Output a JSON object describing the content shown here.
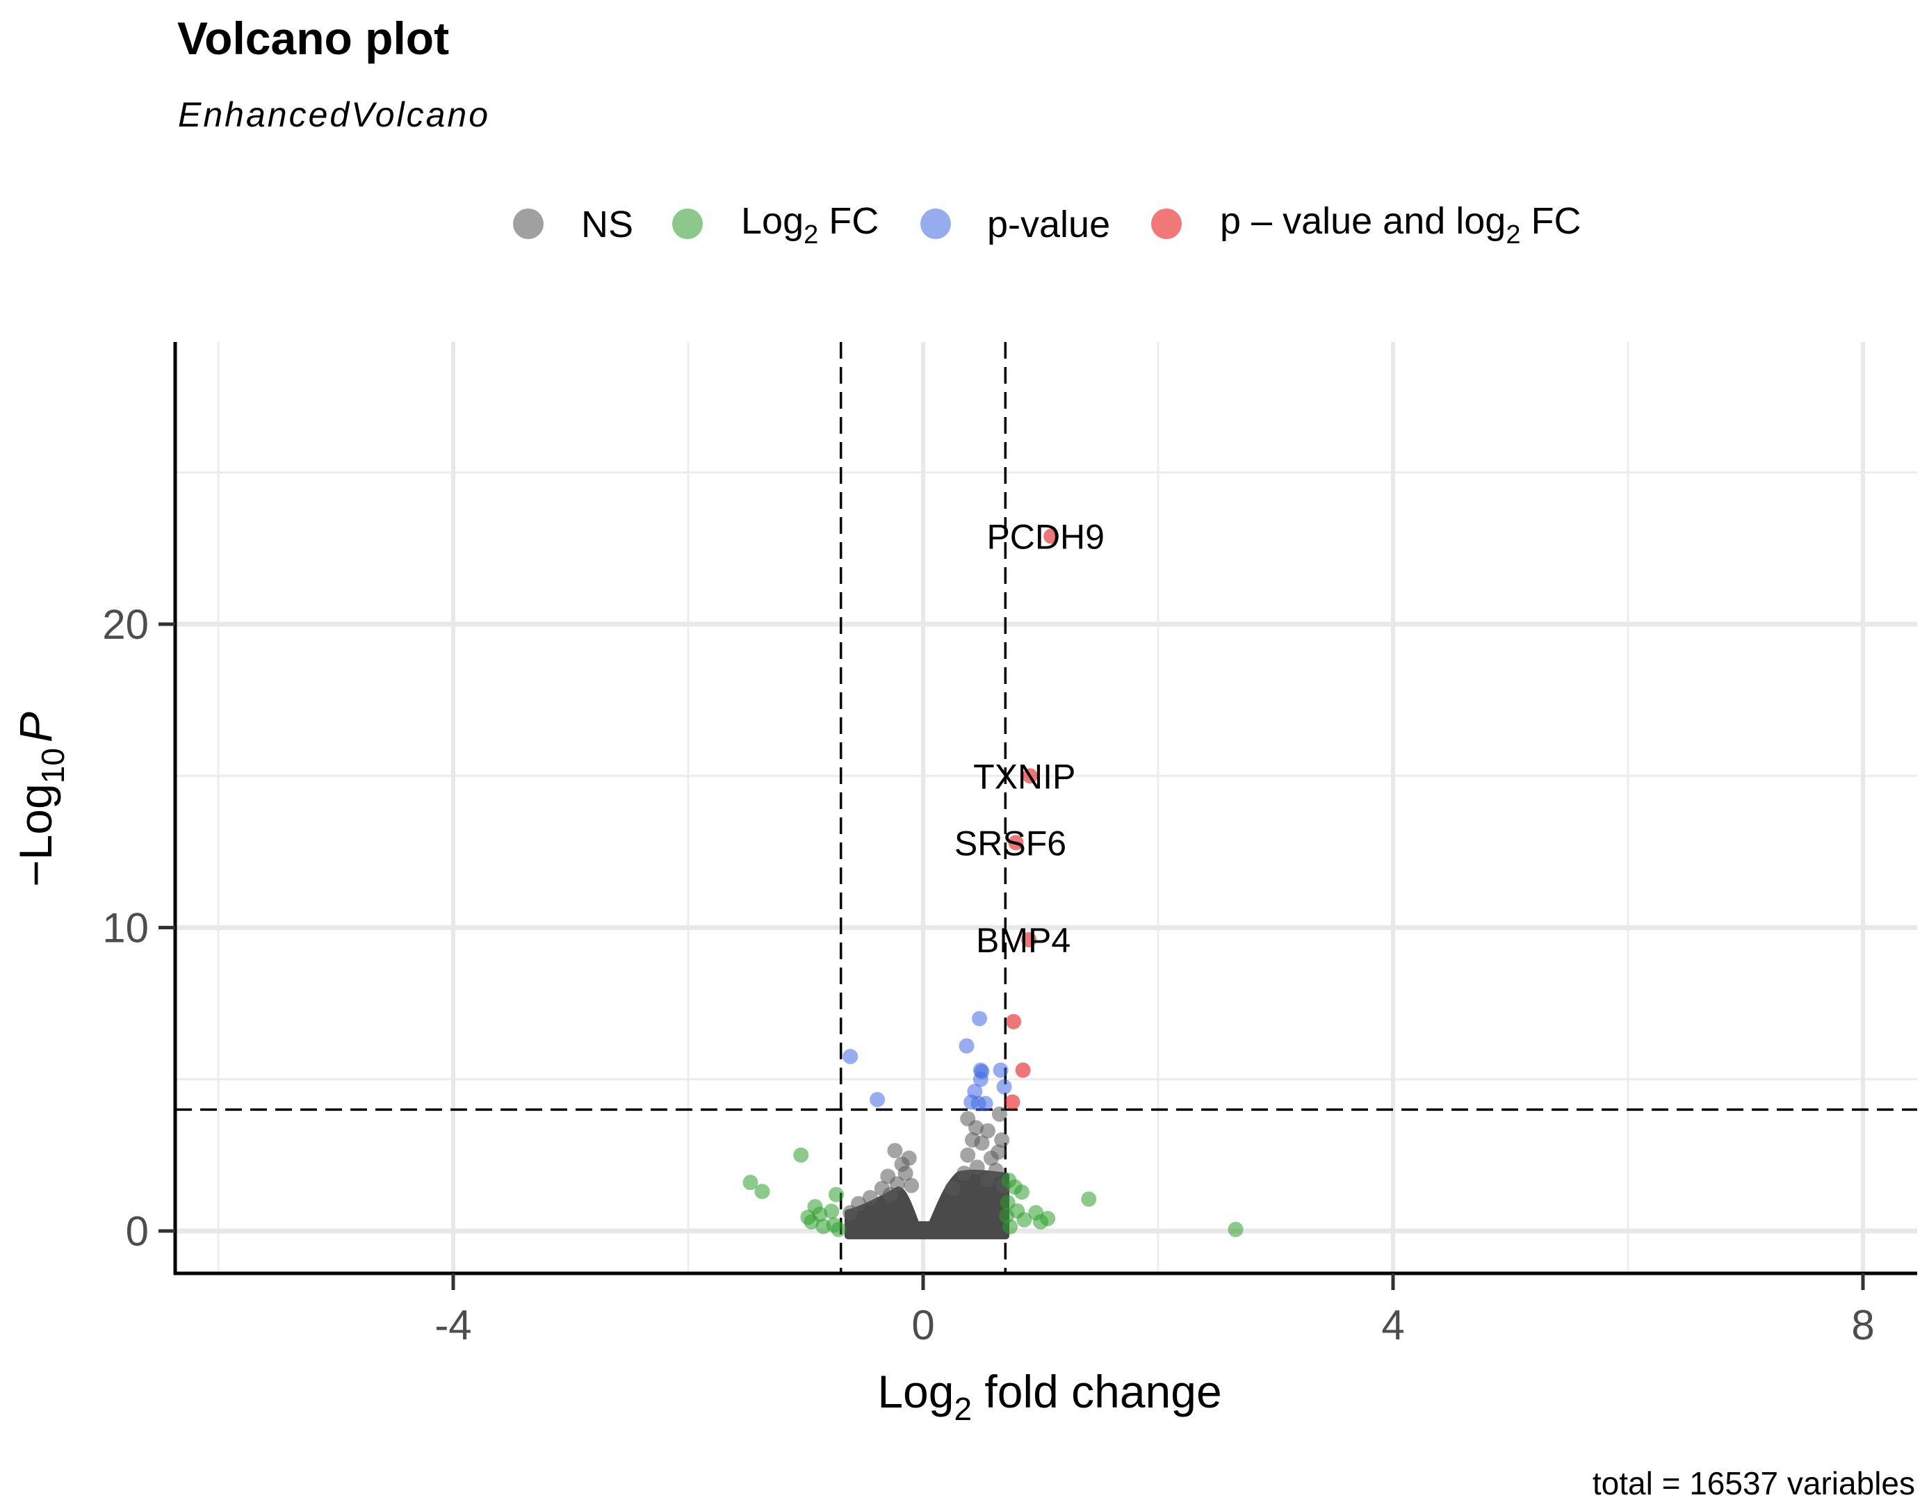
{
  "chart_data": {
    "type": "scatter",
    "title": "Volcano plot",
    "subtitle": "EnhancedVolcano",
    "xlabel": "Log2 fold change",
    "xlabel_main": "Log",
    "xlabel_sub": "2",
    "xlabel_rest": " fold change",
    "ylabel": "-Log10 P",
    "ylabel_prefix": "−Log",
    "ylabel_sub": "10",
    "ylabel_italic": "P",
    "caption": "total = 16537 variables",
    "xlim": [
      -6.36,
      8.3
    ],
    "ylim": [
      -1.4,
      29.4
    ],
    "x_ticks": [
      -4,
      0,
      4,
      8
    ],
    "x_tick_labels": [
      "-4",
      "0",
      "4",
      "8"
    ],
    "y_ticks": [
      0,
      10,
      20
    ],
    "y_tick_labels": [
      "0",
      "10",
      "20"
    ],
    "x_minor_grid": [
      -6,
      -2,
      2,
      6
    ],
    "y_minor_grid": [
      5,
      15,
      25
    ],
    "grid": true,
    "cutoffs": {
      "log2fc": [
        -0.7,
        0.7
      ],
      "neg_log10_p": 4.0
    },
    "legend": {
      "position": "top",
      "entries": [
        {
          "key": "NS",
          "label": "NS",
          "color": "#a0a0a0"
        },
        {
          "key": "FC",
          "label": "Log2 FC",
          "main": "Log",
          "sub": "2",
          "rest": " FC",
          "color": "#8cc78c"
        },
        {
          "key": "P",
          "label": "p-value",
          "color": "#97acef"
        },
        {
          "key": "FC_P",
          "label": "p – value and log2 FC",
          "main": "p – value and log",
          "sub": "2",
          "rest": " FC",
          "color": "#f07878"
        }
      ]
    },
    "colors": {
      "NS": "#5a5a5a",
      "FC": "#2e9e2e",
      "P": "#4169e1",
      "FC_P": "#e31a1c"
    },
    "labeled_points": [
      {
        "gene": "PCDH9",
        "x": 1.09,
        "y": 22.9
      },
      {
        "gene": "TXNIP",
        "x": 0.91,
        "y": 15.0
      },
      {
        "gene": "SRSF6",
        "x": 0.79,
        "y": 12.8
      },
      {
        "gene": "BMP4",
        "x": 0.9,
        "y": 9.6
      }
    ],
    "series": [
      {
        "name": "p - value and log2 FC",
        "key": "FC_P",
        "points": [
          {
            "x": 1.09,
            "y": 22.9
          },
          {
            "x": 0.91,
            "y": 15.0
          },
          {
            "x": 0.79,
            "y": 12.8
          },
          {
            "x": 0.9,
            "y": 9.6
          },
          {
            "x": 0.77,
            "y": 6.9
          },
          {
            "x": 0.85,
            "y": 5.3
          },
          {
            "x": 0.76,
            "y": 4.25
          }
        ]
      },
      {
        "name": "p-value",
        "key": "P",
        "points": [
          {
            "x": -0.62,
            "y": 5.75
          },
          {
            "x": -0.39,
            "y": 4.33
          },
          {
            "x": 0.48,
            "y": 7.0
          },
          {
            "x": 0.37,
            "y": 6.1
          },
          {
            "x": 0.49,
            "y": 5.3
          },
          {
            "x": 0.5,
            "y": 5.25
          },
          {
            "x": 0.49,
            "y": 5.0
          },
          {
            "x": 0.66,
            "y": 5.3
          },
          {
            "x": 0.69,
            "y": 4.75
          },
          {
            "x": 0.44,
            "y": 4.6
          },
          {
            "x": 0.41,
            "y": 4.25
          },
          {
            "x": 0.53,
            "y": 4.2
          },
          {
            "x": 0.47,
            "y": 4.2
          }
        ]
      },
      {
        "name": "Log2 FC",
        "key": "FC",
        "points": [
          {
            "x": -1.04,
            "y": 2.5
          },
          {
            "x": -1.47,
            "y": 1.6
          },
          {
            "x": -1.37,
            "y": 1.3
          },
          {
            "x": -0.74,
            "y": 1.2
          },
          {
            "x": -0.92,
            "y": 0.8
          },
          {
            "x": -0.95,
            "y": 0.3
          },
          {
            "x": -0.88,
            "y": 0.55
          },
          {
            "x": -0.78,
            "y": 0.65
          },
          {
            "x": -0.76,
            "y": 0.2
          },
          {
            "x": -0.98,
            "y": 0.45
          },
          {
            "x": -0.85,
            "y": 0.15
          },
          {
            "x": -0.72,
            "y": 0.05
          },
          {
            "x": 1.41,
            "y": 1.05
          },
          {
            "x": 2.66,
            "y": 0.05
          },
          {
            "x": 0.73,
            "y": 1.67
          },
          {
            "x": 0.84,
            "y": 1.28
          },
          {
            "x": 0.72,
            "y": 0.94
          },
          {
            "x": 0.8,
            "y": 0.66
          },
          {
            "x": 0.96,
            "y": 0.6
          },
          {
            "x": 1.06,
            "y": 0.41
          },
          {
            "x": 1.0,
            "y": 0.3
          },
          {
            "x": 0.86,
            "y": 0.37
          },
          {
            "x": 0.74,
            "y": 0.14
          },
          {
            "x": 0.78,
            "y": 1.45
          },
          {
            "x": 0.71,
            "y": 0.5
          }
        ]
      },
      {
        "name": "NS",
        "key": "NS",
        "points": [
          {
            "x": -0.24,
            "y": 2.65
          },
          {
            "x": -0.12,
            "y": 2.4
          },
          {
            "x": -0.18,
            "y": 2.2
          },
          {
            "x": -0.3,
            "y": 1.8
          },
          {
            "x": -0.15,
            "y": 1.9
          },
          {
            "x": -0.35,
            "y": 1.4
          },
          {
            "x": -0.22,
            "y": 1.55
          },
          {
            "x": -0.45,
            "y": 1.1
          },
          {
            "x": -0.55,
            "y": 0.9
          },
          {
            "x": -0.62,
            "y": 0.6
          },
          {
            "x": -0.28,
            "y": 1.2
          },
          {
            "x": -0.1,
            "y": 1.5
          },
          {
            "x": 0.38,
            "y": 3.7
          },
          {
            "x": 0.45,
            "y": 3.4
          },
          {
            "x": 0.42,
            "y": 3.0
          },
          {
            "x": 0.5,
            "y": 2.9
          },
          {
            "x": 0.55,
            "y": 3.3
          },
          {
            "x": 0.65,
            "y": 3.85
          },
          {
            "x": 0.67,
            "y": 3.0
          },
          {
            "x": 0.38,
            "y": 2.5
          },
          {
            "x": 0.46,
            "y": 2.1
          },
          {
            "x": 0.58,
            "y": 2.4
          },
          {
            "x": 0.62,
            "y": 2.0
          },
          {
            "x": 0.35,
            "y": 1.9
          },
          {
            "x": 0.68,
            "y": 1.5
          },
          {
            "x": 0.55,
            "y": 1.7
          },
          {
            "x": 0.25,
            "y": 1.4
          },
          {
            "x": 0.64,
            "y": 2.6
          }
        ],
        "note": "plus dense bulk of ~16,500 points between x -0.7 and 0.7 at y < 1.5"
      }
    ]
  }
}
